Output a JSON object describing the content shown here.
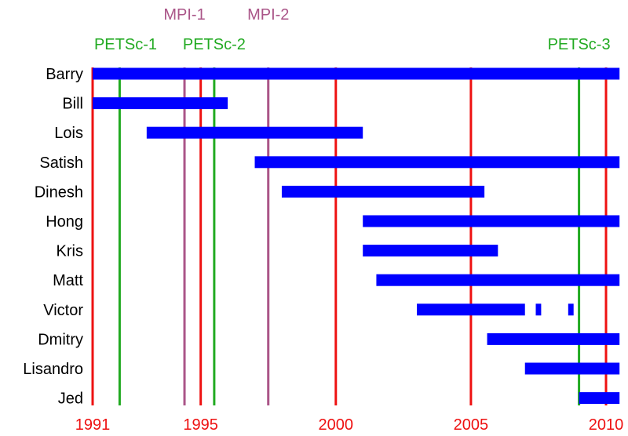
{
  "chart_data": {
    "type": "bar",
    "orientation": "horizontal",
    "title": "",
    "xlabel": "",
    "ylabel": "",
    "xlim": [
      1991,
      2010.5
    ],
    "x_ticks": [
      "1991",
      "1995",
      "2000",
      "2005",
      "2010"
    ],
    "x_tick_values": [
      1991,
      1995,
      2000,
      2005,
      2010
    ],
    "colors": {
      "bar": "#0000ff",
      "year_line": "#ee1111",
      "petsc_line": "#22aa22",
      "mpi_line": "#aa5588",
      "tick_text": "#ee1111",
      "name_text": "#000000"
    },
    "rows": [
      {
        "name": "Barry",
        "spans": [
          [
            1991.0,
            2010.5
          ]
        ]
      },
      {
        "name": "Bill",
        "spans": [
          [
            1991.0,
            1996.0
          ]
        ]
      },
      {
        "name": "Lois",
        "spans": [
          [
            1993.0,
            2001.0
          ]
        ]
      },
      {
        "name": "Satish",
        "spans": [
          [
            1997.0,
            2010.5
          ]
        ]
      },
      {
        "name": "Dinesh",
        "spans": [
          [
            1998.0,
            2005.5
          ]
        ]
      },
      {
        "name": "Hong",
        "spans": [
          [
            2001.0,
            2010.5
          ]
        ]
      },
      {
        "name": "Kris",
        "spans": [
          [
            2001.0,
            2006.0
          ]
        ]
      },
      {
        "name": "Matt",
        "spans": [
          [
            2001.5,
            2010.5
          ]
        ]
      },
      {
        "name": "Victor",
        "spans": [
          [
            2003.0,
            2007.0
          ],
          [
            2007.4,
            2007.6
          ],
          [
            2008.6,
            2008.8
          ]
        ]
      },
      {
        "name": "Dmitry",
        "spans": [
          [
            2005.6,
            2010.5
          ]
        ]
      },
      {
        "name": "Lisandro",
        "spans": [
          [
            2007.0,
            2010.5
          ]
        ]
      },
      {
        "name": "Jed",
        "spans": [
          [
            2009.0,
            2010.5
          ]
        ]
      }
    ],
    "events": [
      {
        "label": "PETSc-1",
        "x": 1992.0,
        "kind": "petsc",
        "tier": "lower"
      },
      {
        "label": "PETSc-2",
        "x": 1995.5,
        "kind": "petsc",
        "tier": "lower"
      },
      {
        "label": "PETSc-3",
        "x": 2009.0,
        "kind": "petsc",
        "tier": "lower"
      },
      {
        "label": "MPI-1",
        "x": 1994.4,
        "kind": "mpi",
        "tier": "upper"
      },
      {
        "label": "MPI-2",
        "x": 1997.5,
        "kind": "mpi",
        "tier": "upper"
      }
    ],
    "year_lines": [
      1991,
      1995,
      2000,
      2005,
      2010
    ]
  }
}
